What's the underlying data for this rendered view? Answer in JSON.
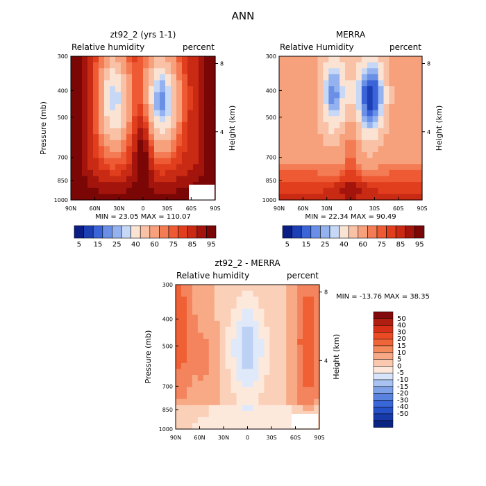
{
  "figure_title": "ANN",
  "chart_data": [
    {
      "type": "heatmap",
      "title": "zt92_2 (yrs 1-1)",
      "subtitle_left": "Relative humidity",
      "subtitle_right": "percent",
      "ylabel": "Pressure (mb)",
      "ylabel_right": "Height (km)",
      "y_ticks": [
        "300",
        "400",
        "500",
        "700",
        "850",
        "1000"
      ],
      "y_tick_values": [
        300,
        400,
        500,
        700,
        850,
        1000
      ],
      "y_right_ticks": [
        "8",
        "4"
      ],
      "y_right_values": [
        8,
        4
      ],
      "x_ticks": [
        "90N",
        "60N",
        "30N",
        "0",
        "30S",
        "60S",
        "90S"
      ],
      "x_tick_values": [
        90,
        60,
        30,
        0,
        -30,
        -60,
        -90
      ],
      "stats": "MIN = 23.05 MAX = 110.07",
      "min": 23.05,
      "max": 110.07,
      "contour_levels": [
        5,
        10,
        15,
        20,
        25,
        30,
        40,
        50,
        60,
        65,
        70,
        75,
        80,
        85,
        90,
        95
      ],
      "colorbar_labels": [
        "5",
        "15",
        "25",
        "40",
        "60",
        "75",
        "85",
        "95"
      ]
    },
    {
      "type": "heatmap",
      "title": "MERRA",
      "subtitle_left": "Relative Humidity",
      "subtitle_right": "percent",
      "ylabel": "",
      "ylabel_right": "Height (km)",
      "y_ticks": [
        "300",
        "400",
        "500",
        "700",
        "850",
        "1000"
      ],
      "y_tick_values": [
        300,
        400,
        500,
        700,
        850,
        1000
      ],
      "y_right_ticks": [
        "8",
        "4"
      ],
      "y_right_values": [
        8,
        4
      ],
      "x_ticks": [
        "90N",
        "60N",
        "30N",
        "0",
        "30S",
        "60S",
        "90S"
      ],
      "x_tick_values": [
        90,
        60,
        30,
        0,
        -30,
        -60,
        -90
      ],
      "stats": "MIN = 22.34 MAX = 90.49",
      "min": 22.34,
      "max": 90.49,
      "contour_levels": [
        5,
        10,
        15,
        20,
        25,
        30,
        40,
        50,
        60,
        65,
        70,
        75,
        80,
        85,
        90,
        95
      ],
      "colorbar_labels": [
        "5",
        "15",
        "25",
        "40",
        "60",
        "75",
        "85",
        "95"
      ]
    },
    {
      "type": "heatmap",
      "title": "zt92_2 - MERRA",
      "subtitle_left": "Relative humidity",
      "subtitle_right": "percent",
      "ylabel": "Pressure (mb)",
      "ylabel_right": "Height (km)",
      "y_ticks": [
        "300",
        "400",
        "500",
        "700",
        "850",
        "1000"
      ],
      "y_tick_values": [
        300,
        400,
        500,
        700,
        850,
        1000
      ],
      "y_right_ticks": [
        "8",
        "4"
      ],
      "y_right_values": [
        8,
        4
      ],
      "x_ticks": [
        "90N",
        "60N",
        "30N",
        "0",
        "30S",
        "60S",
        "90S"
      ],
      "x_tick_values": [
        90,
        60,
        30,
        0,
        -30,
        -60,
        -90
      ],
      "stats": "MIN = -13.76 MAX = 38.35",
      "min": -13.76,
      "max": 38.35,
      "contour_levels": [
        -50,
        -40,
        -30,
        -20,
        -15,
        -10,
        -5,
        0,
        5,
        10,
        15,
        20,
        30,
        40,
        50
      ],
      "colorbar_labels": [
        "50",
        "40",
        "30",
        "20",
        "15",
        "10",
        "5",
        "0",
        "-5",
        "-10",
        "-15",
        "-20",
        "-30",
        "-40",
        "-50"
      ]
    }
  ],
  "colors": {
    "rh_scale": [
      "#0a1e86",
      "#1d3fb5",
      "#3a64d8",
      "#6a8fe6",
      "#94b2ef",
      "#c6d8f6",
      "#fbe3d4",
      "#f9c1a6",
      "#f7a07c",
      "#f47c55",
      "#ee5a33",
      "#e13e1e",
      "#c92a14",
      "#a3150c",
      "#7a0606"
    ],
    "diff_scale": [
      "#7a0606",
      "#a3150c",
      "#c92a14",
      "#e13e1e",
      "#f06035",
      "#f4845d",
      "#f8a986",
      "#fbd0b8",
      "#fde9dc",
      "#dfe9fa",
      "#bcd1f3",
      "#9ab7ec",
      "#7599e4",
      "#4f76da",
      "#2a52c9",
      "#143aa8",
      "#0a2486"
    ],
    "diff_swatches": [
      "#82090c",
      "#b01d11",
      "#d63018",
      "#ea4a24",
      "#f06538",
      "#f38a5c",
      "#f7a985",
      "#fac8ae",
      "#fde6da",
      "#d7e4f9",
      "#a8c3f1",
      "#7ea1e7",
      "#5a83e0",
      "#3a67d7",
      "#2650c6",
      "#173aab",
      "#0b2381"
    ]
  }
}
